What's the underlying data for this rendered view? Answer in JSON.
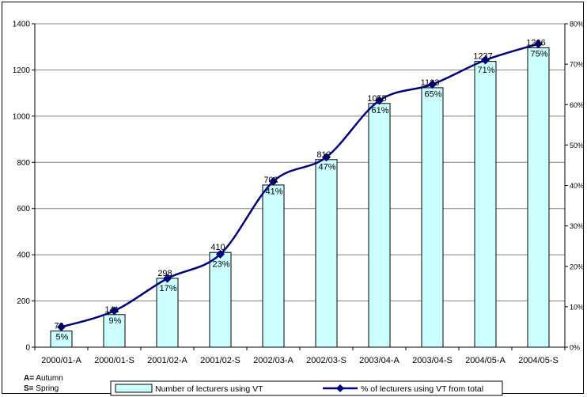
{
  "chart_data": {
    "type": "bar",
    "categories": [
      "2000/01-A",
      "2000/01-S",
      "2001/02-A",
      "2001/02-S",
      "2002/03-A",
      "2002/03-S",
      "2003/04-A",
      "2003/04-S",
      "2004/05-A",
      "2004/05-S"
    ],
    "series": [
      {
        "name": "Number of lecturers using VT",
        "type": "bar",
        "axis": "left",
        "values": [
          70,
          141,
          298,
          410,
          702,
          812,
          1055,
          1123,
          1237,
          1296
        ],
        "labels": [
          "70",
          "141",
          "298",
          "410",
          "702",
          "812",
          "1055",
          "1123",
          "1237",
          "1296"
        ]
      },
      {
        "name": "% of lecturers using VT from total",
        "type": "line",
        "axis": "right",
        "values": [
          5,
          9,
          17,
          23,
          41,
          47,
          61,
          65,
          71,
          75
        ],
        "labels": [
          "5%",
          "9%",
          "17%",
          "23%",
          "41%",
          "47%",
          "61%",
          "65%",
          "71%",
          "75%"
        ]
      }
    ],
    "y_left": {
      "min": 0,
      "max": 1400,
      "ticks": [
        "0",
        "200",
        "400",
        "600",
        "800",
        "1000",
        "1200",
        "1400"
      ]
    },
    "y_right": {
      "min": 0,
      "max": 80,
      "ticks": [
        "0%",
        "10%",
        "20%",
        "30%",
        "40%",
        "50%",
        "60%",
        "70%",
        "80%"
      ]
    },
    "grid": true,
    "legend_position": "bottom",
    "colors": {
      "bar_fill": "#ccffff",
      "bar_stroke": "#000000",
      "line": "#000080",
      "grid": "#808080"
    }
  },
  "notes": {
    "autumn_key": "A=",
    "autumn_text": " Autumn",
    "spring_key": "S=",
    "spring_text": " Spring"
  }
}
